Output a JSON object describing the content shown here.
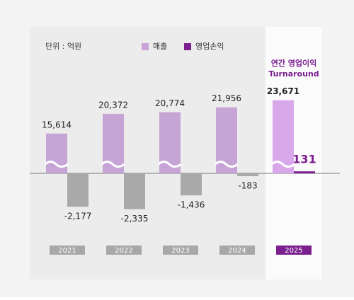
{
  "chart_data": {
    "type": "bar",
    "unit_note": "단위 : 억원",
    "annotation": [
      "연간 영업이익",
      "Turnaround"
    ],
    "categories": [
      "2021",
      "2022",
      "2023",
      "2024",
      "2025"
    ],
    "category_colors": [
      "#a8a8a8",
      "#a8a8a8",
      "#a8a8a8",
      "#a8a8a8",
      "#7b1f8f"
    ],
    "series": [
      {
        "name": "매출",
        "color": "#c9a3d9",
        "axis": "y2",
        "colors": [
          "#c6a4d6",
          "#c6a4d6",
          "#c6a4d6",
          "#c6a4d6",
          "#d9a8ea"
        ],
        "values": [
          15614,
          20372,
          20774,
          21956,
          23671
        ],
        "value_labels": [
          "15,614",
          "20,372",
          "20,774",
          "21,956",
          "23,671"
        ]
      },
      {
        "name": "영업손익",
        "color": "#7b1f8f",
        "colors": [
          "#a9a9a9",
          "#a9a9a9",
          "#a9a9a9",
          "#a9a9a9",
          "#7b1f8f"
        ],
        "values": [
          -2177,
          -2335,
          -1436,
          -183,
          131
        ],
        "value_labels": [
          "-2,177",
          "-2,335",
          "-1,436",
          "-183",
          "131"
        ]
      }
    ],
    "ylim": [
      -3000,
      3000
    ],
    "y2lim": [
      6000,
      26000
    ]
  }
}
